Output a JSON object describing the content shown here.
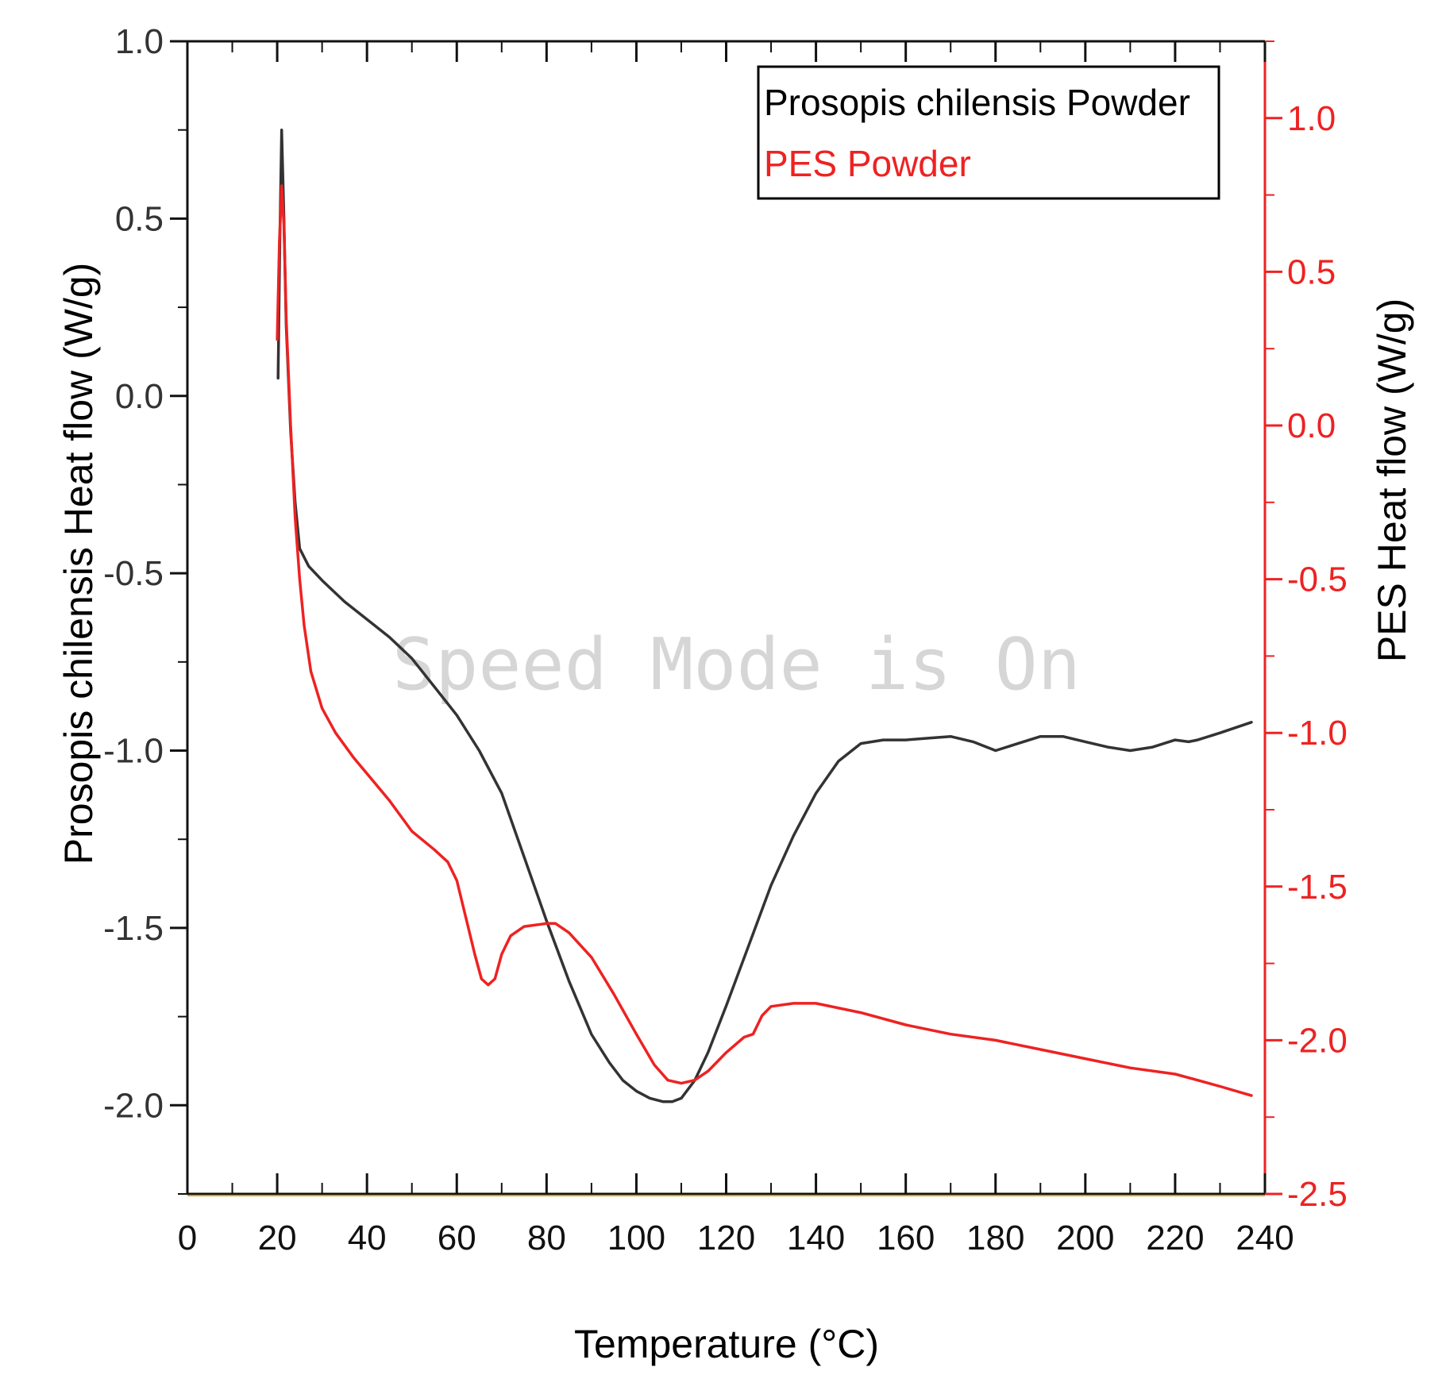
{
  "chart_data": {
    "type": "line",
    "title": "",
    "xlabel": "Temperature (°C)",
    "ylabel_left": "Prosopis chilensis Heat flow (W/g)",
    "ylabel_right": "PES Heat flow (W/g)",
    "xlim": [
      0,
      240
    ],
    "ylim_left": [
      -2.25,
      1.0
    ],
    "ylim_right": [
      -2.5,
      1.25
    ],
    "x_ticks": [
      0,
      20,
      40,
      60,
      80,
      100,
      120,
      140,
      160,
      180,
      200,
      220,
      240
    ],
    "y_ticks_left": [
      1.0,
      0.5,
      0.0,
      -0.5,
      -1.0,
      -1.5,
      -2.0
    ],
    "y_ticks_right": [
      1.0,
      0.5,
      0.0,
      -0.5,
      -1.0,
      -1.5,
      -2.0,
      -2.5
    ],
    "grid": false,
    "legend_position": "top-right",
    "watermark": "Speed Mode is On",
    "series": [
      {
        "name": "Prosopis chilensis Powder",
        "axis": "left",
        "color": "#333333",
        "x": [
          20.2,
          20.6,
          21.0,
          21.5,
          22.0,
          23.0,
          24.0,
          25.0,
          27.0,
          30.0,
          35.0,
          40.0,
          45.0,
          50.0,
          55.0,
          60.0,
          65.0,
          70.0,
          75.0,
          80.0,
          85.0,
          90.0,
          94.0,
          97.0,
          100.0,
          103.0,
          106.0,
          108.0,
          110.0,
          113.0,
          116.0,
          120.0,
          125.0,
          130.0,
          135.0,
          140.0,
          145.0,
          150.0,
          155.0,
          160.0,
          165.0,
          170.0,
          175.0,
          180.0,
          185.0,
          190.0,
          195.0,
          200.0,
          205.0,
          210.0,
          215.0,
          220.0,
          223.0,
          225.0,
          230.0,
          237.0
        ],
        "y": [
          0.05,
          0.45,
          0.75,
          0.5,
          0.2,
          -0.1,
          -0.3,
          -0.43,
          -0.48,
          -0.52,
          -0.58,
          -0.63,
          -0.68,
          -0.74,
          -0.82,
          -0.9,
          -1.0,
          -1.12,
          -1.3,
          -1.48,
          -1.65,
          -1.8,
          -1.88,
          -1.93,
          -1.96,
          -1.98,
          -1.99,
          -1.99,
          -1.98,
          -1.93,
          -1.85,
          -1.72,
          -1.55,
          -1.38,
          -1.24,
          -1.12,
          -1.03,
          -0.98,
          -0.97,
          -0.97,
          -0.965,
          -0.96,
          -0.975,
          -1.0,
          -0.98,
          -0.96,
          -0.96,
          -0.975,
          -0.99,
          -1.0,
          -0.99,
          -0.97,
          -0.975,
          -0.97,
          -0.95,
          -0.92
        ]
      },
      {
        "name": "PES Powder",
        "axis": "right",
        "color": "#ee2222",
        "x": [
          20.0,
          20.5,
          21.0,
          21.5,
          22.0,
          23.0,
          24.0,
          25.0,
          26.0,
          27.5,
          30.0,
          33.0,
          37.0,
          41.0,
          45.0,
          50.0,
          55.0,
          58.0,
          60.0,
          62.0,
          64.0,
          65.5,
          67.0,
          68.5,
          70.0,
          72.0,
          75.0,
          80.0,
          82.0,
          85.0,
          90.0,
          95.0,
          100.0,
          104.0,
          107.0,
          110.0,
          113.0,
          116.0,
          120.0,
          124.0,
          126.0,
          128.0,
          130.0,
          135.0,
          140.0,
          150.0,
          160.0,
          170.0,
          180.0,
          190.0,
          200.0,
          210.0,
          220.0,
          225.0,
          230.0,
          237.0
        ],
        "y": [
          0.28,
          0.6,
          0.78,
          0.65,
          0.35,
          0.0,
          -0.3,
          -0.5,
          -0.65,
          -0.8,
          -0.92,
          -1.0,
          -1.08,
          -1.15,
          -1.22,
          -1.32,
          -1.38,
          -1.42,
          -1.48,
          -1.6,
          -1.72,
          -1.8,
          -1.82,
          -1.8,
          -1.72,
          -1.66,
          -1.63,
          -1.62,
          -1.62,
          -1.65,
          -1.73,
          -1.85,
          -1.98,
          -2.08,
          -2.13,
          -2.14,
          -2.13,
          -2.1,
          -2.04,
          -1.99,
          -1.98,
          -1.92,
          -1.89,
          -1.88,
          -1.88,
          -1.91,
          -1.95,
          -1.98,
          -2.0,
          -2.03,
          -2.06,
          -2.09,
          -2.11,
          -2.13,
          -2.15,
          -2.18
        ]
      }
    ]
  }
}
